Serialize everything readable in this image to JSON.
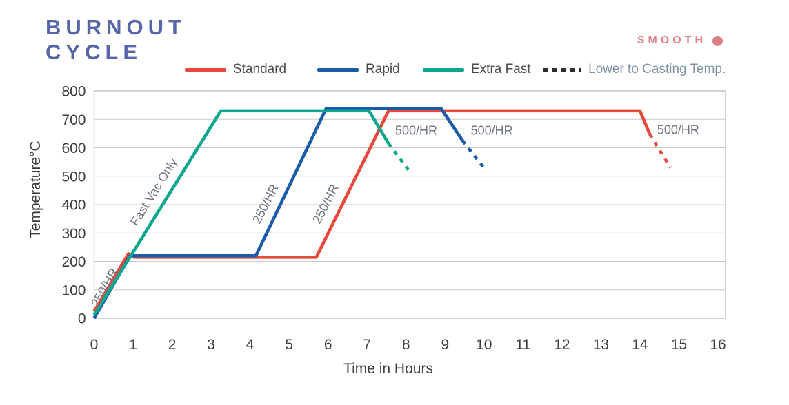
{
  "header": {
    "title_line1": "BURNOUT",
    "title_line2": "CYCLE",
    "title_color": "#5766a9",
    "brand_name": "SMOOTH",
    "brand_color": "#dc7e85"
  },
  "legend": {
    "items": [
      {
        "label": "Standard",
        "color": "#e74a3c",
        "style": "solid"
      },
      {
        "label": "Rapid",
        "color": "#1b5ca8",
        "style": "solid"
      },
      {
        "label": "Extra Fast",
        "color": "#0ca78e",
        "style": "solid"
      },
      {
        "label": "Lower to Casting Temp.",
        "color": "#2d2d2d",
        "style": "dotted"
      }
    ]
  },
  "chart_data": {
    "type": "line",
    "title": "Burnout Cycle",
    "xlabel": "Time in Hours",
    "ylabel": "Temperature°C",
    "xlim": [
      0,
      16
    ],
    "ylim": [
      0,
      800
    ],
    "x_ticks": [
      0,
      1,
      2,
      3,
      4,
      5,
      6,
      7,
      8,
      9,
      10,
      11,
      12,
      13,
      14,
      15,
      16
    ],
    "y_ticks": [
      0,
      100,
      200,
      300,
      400,
      500,
      600,
      700,
      800
    ],
    "grid": "horizontal",
    "legend_position": "top",
    "dashed_meaning": "Lower to Casting Temp.",
    "series": [
      {
        "name": "Standard",
        "color": "#e74a3c",
        "solid_points": [
          [
            0,
            24
          ],
          [
            0.88,
            227
          ],
          [
            1.05,
            215
          ],
          [
            5.7,
            215
          ],
          [
            7.55,
            730
          ],
          [
            14,
            730
          ],
          [
            14.25,
            648
          ]
        ],
        "dashed_points": [
          [
            14.25,
            648
          ],
          [
            14.78,
            530
          ]
        ]
      },
      {
        "name": "Rapid",
        "color": "#1b5ca8",
        "solid_points": [
          [
            0,
            0
          ],
          [
            0.92,
            220
          ],
          [
            4.15,
            220
          ],
          [
            5.95,
            738
          ],
          [
            8.9,
            738
          ],
          [
            9.45,
            625
          ]
        ],
        "dashed_points": [
          [
            9.45,
            625
          ],
          [
            10.05,
            520
          ]
        ]
      },
      {
        "name": "Extra Fast",
        "color": "#0ca78e",
        "solid_points": [
          [
            0,
            12
          ],
          [
            3.25,
            730
          ],
          [
            7.05,
            730
          ],
          [
            7.55,
            615
          ]
        ],
        "dashed_points": [
          [
            7.55,
            615
          ],
          [
            8.1,
            515
          ]
        ]
      }
    ],
    "annotations": [
      {
        "text": "250/HR",
        "x": 0.36,
        "y": 101,
        "rotate": -61
      },
      {
        "text": "Fast Vac Only",
        "x": 1.62,
        "y": 437,
        "rotate": -58
      },
      {
        "text": "250/HR",
        "x": 4.49,
        "y": 396,
        "rotate": -63
      },
      {
        "text": "250/HR",
        "x": 6.03,
        "y": 396,
        "rotate": -63
      },
      {
        "text": "500/HR",
        "x": 8.26,
        "y": 646,
        "rotate": 0
      },
      {
        "text": "500/HR",
        "x": 10.2,
        "y": 646,
        "rotate": 0
      },
      {
        "text": "500/HR",
        "x": 14.98,
        "y": 649,
        "rotate": 0
      }
    ]
  }
}
